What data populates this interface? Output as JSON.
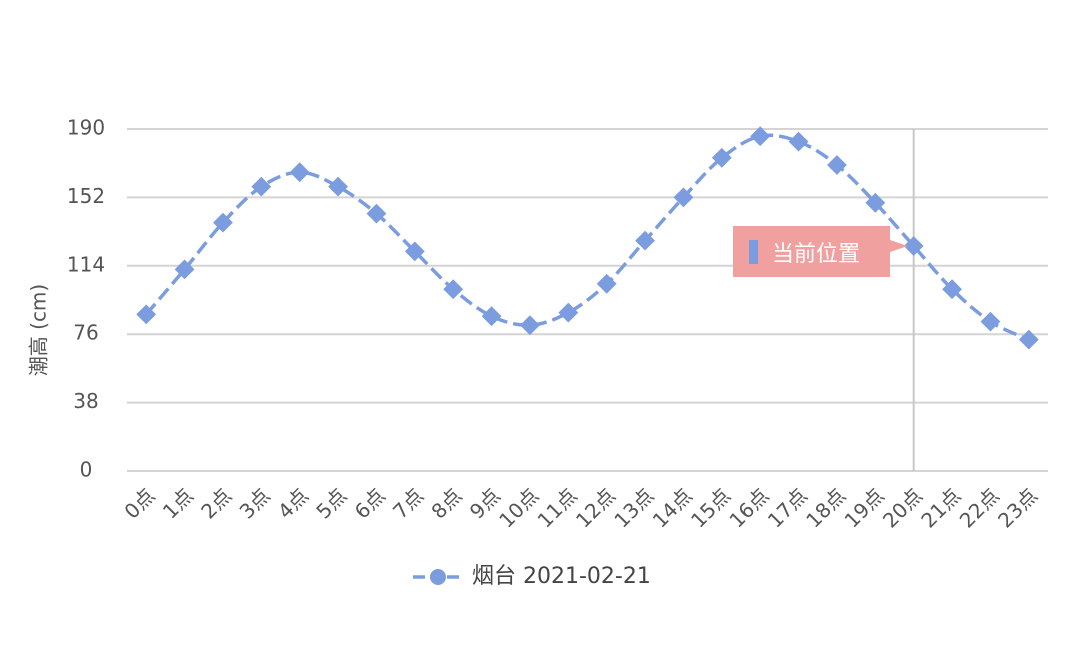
{
  "chart_data": {
    "type": "line",
    "y_label": "潮高 (cm)",
    "categories": [
      "0点",
      "1点",
      "2点",
      "3点",
      "4点",
      "5点",
      "6点",
      "7点",
      "8点",
      "9点",
      "10点",
      "11点",
      "12点",
      "13点",
      "14点",
      "15点",
      "16点",
      "17点",
      "18点",
      "19点",
      "20点",
      "21点",
      "22点",
      "23点"
    ],
    "series": [
      {
        "name": "烟台 2021-02-21",
        "color": "#7b9de0",
        "values": [
          87,
          112,
          138,
          158,
          166,
          158,
          143,
          122,
          101,
          86,
          81,
          88,
          104,
          128,
          152,
          174,
          186,
          183,
          170,
          149,
          125,
          101,
          83,
          73
        ]
      }
    ],
    "ylim": [
      0,
      190
    ],
    "yticks": [
      0,
      38,
      76,
      114,
      152,
      190
    ],
    "grid": true,
    "legend": "bottom",
    "annotation": {
      "text": "当前位置",
      "category": "20点",
      "color": "#f1a0a0"
    }
  }
}
